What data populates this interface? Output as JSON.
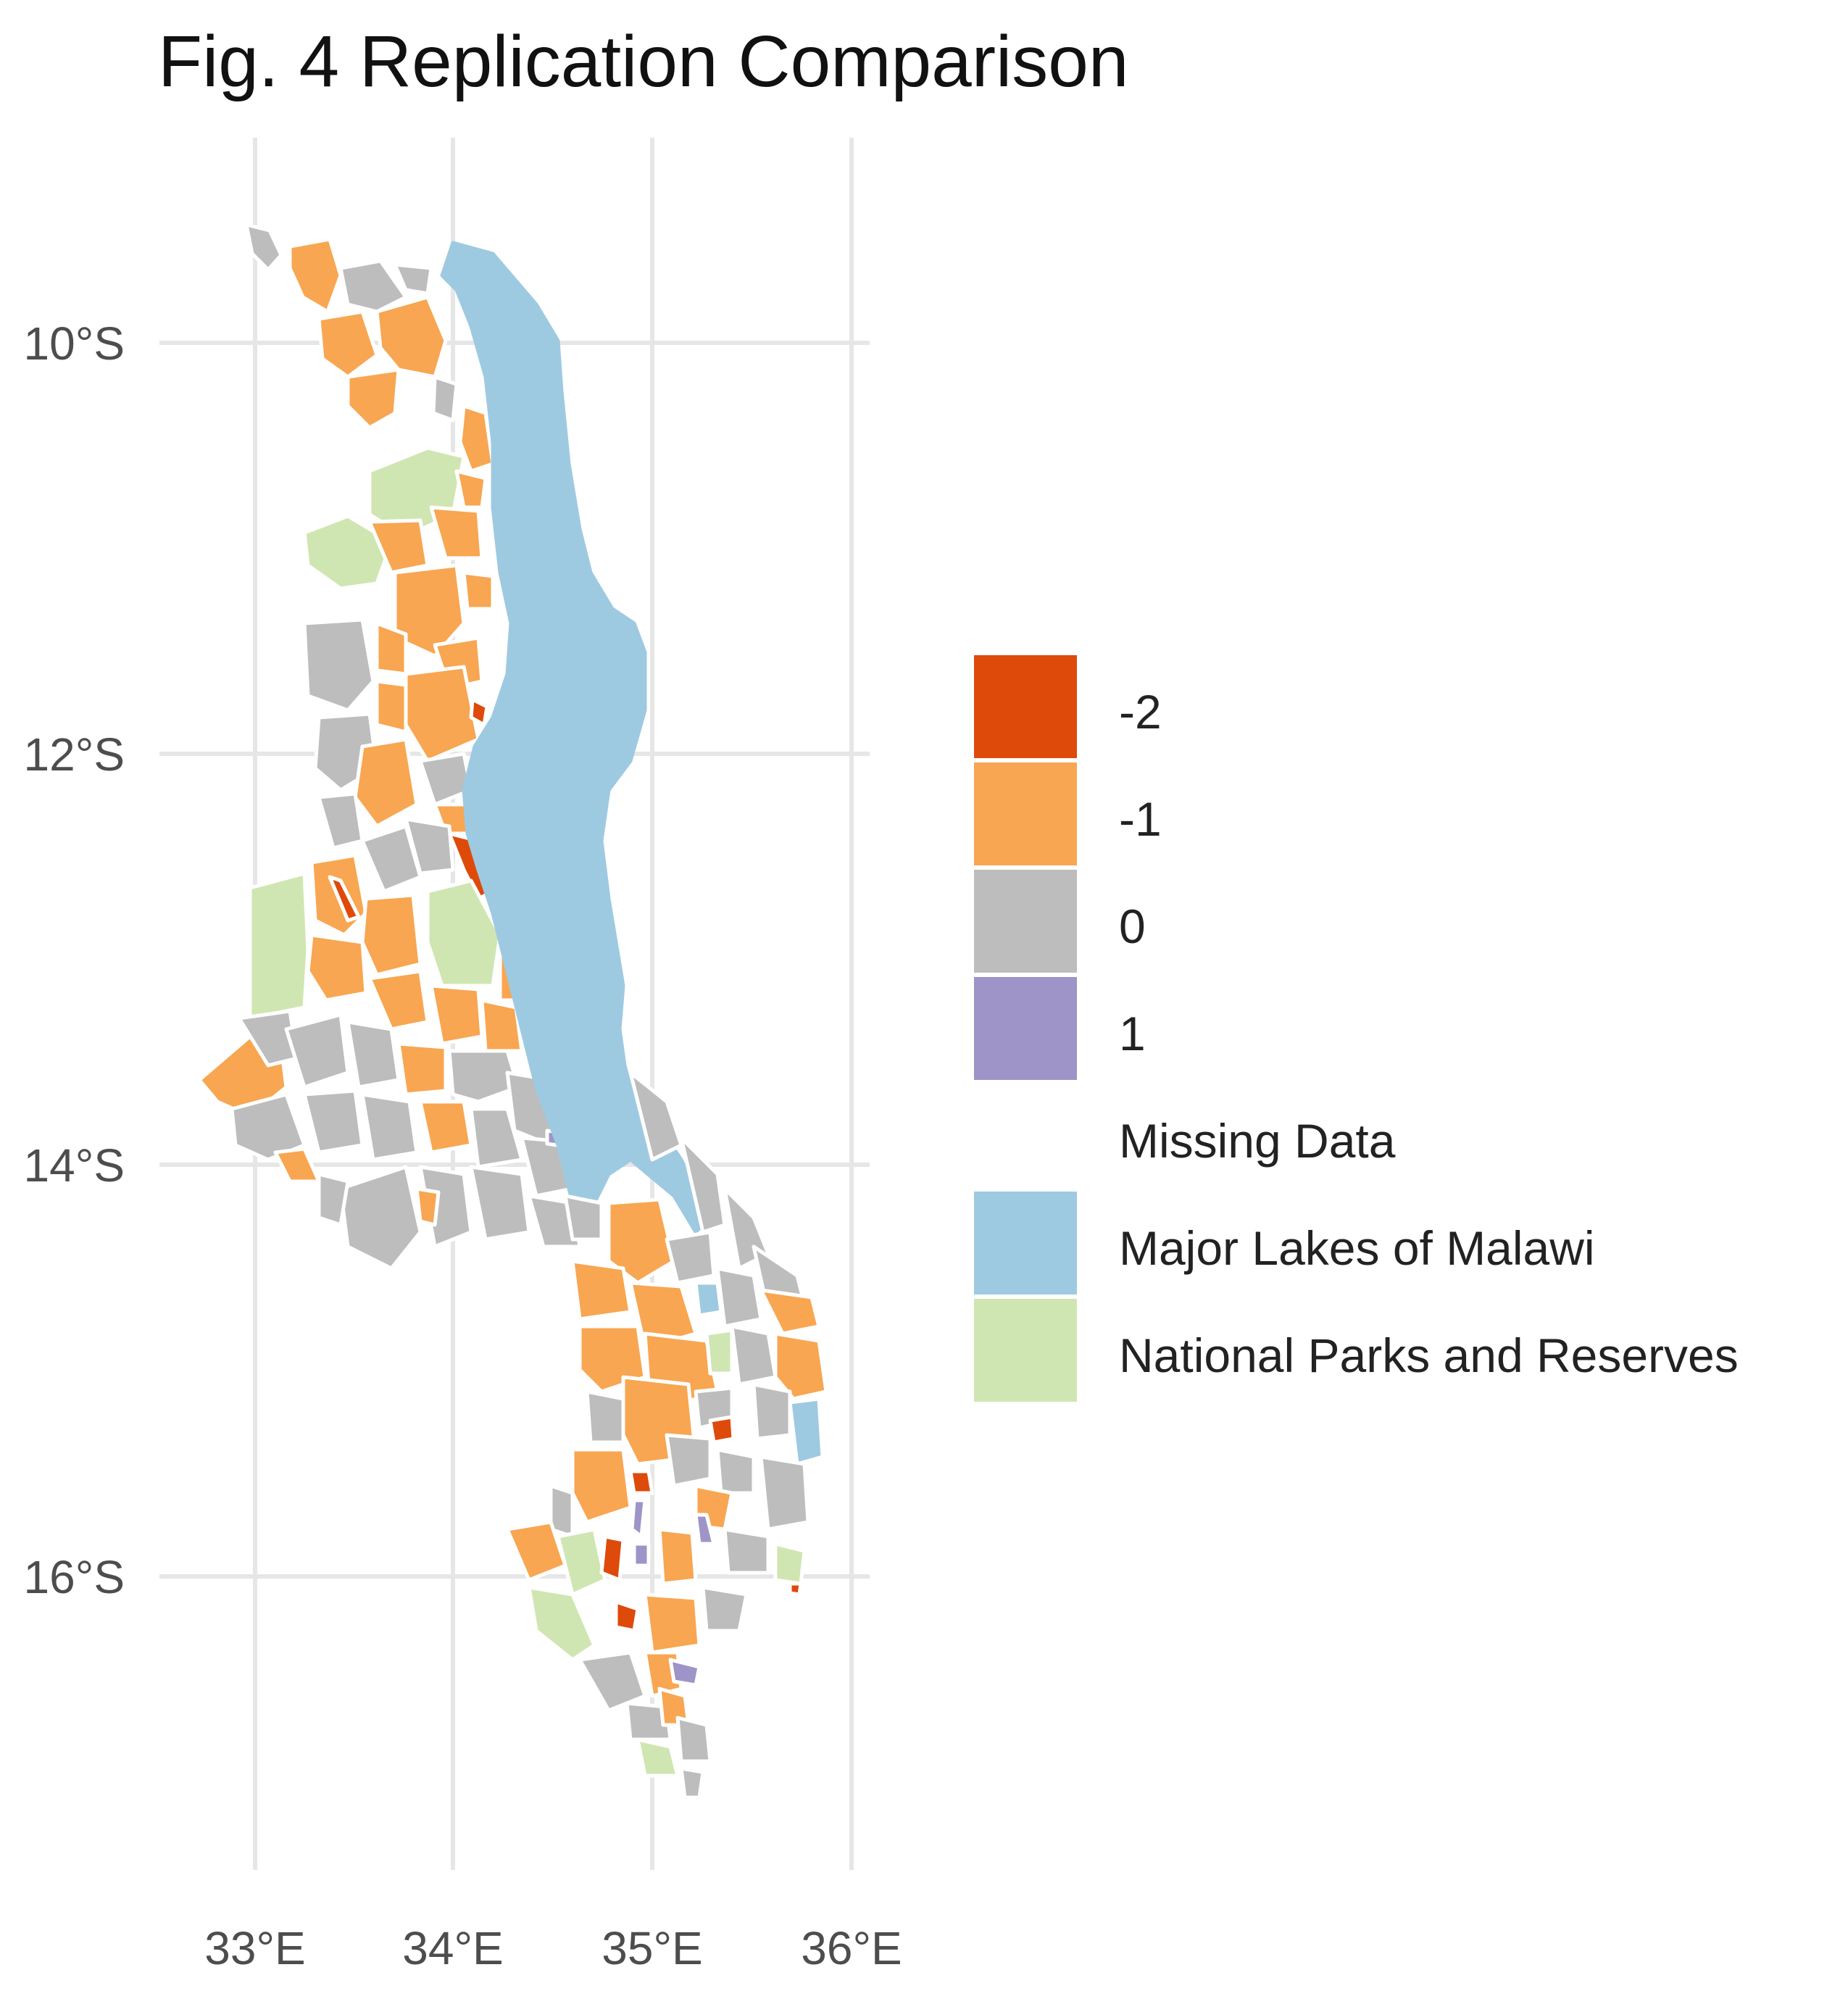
{
  "title": "Fig. 4 Replication Comparison",
  "axes": {
    "x_ticks": [
      "33°E",
      "34°E",
      "35°E",
      "36°E"
    ],
    "y_ticks": [
      "10°S",
      "12°S",
      "14°S",
      "16°S"
    ]
  },
  "legend": {
    "items": [
      {
        "label": "-2",
        "color": "#de4a0a"
      },
      {
        "label": "-1",
        "color": "#f8a651"
      },
      {
        "label": "0",
        "color": "#bdbdbd"
      },
      {
        "label": "1",
        "color": "#9e94c8"
      },
      {
        "label": "Missing Data",
        "color": "#ffffff"
      },
      {
        "label": "Major Lakes of Malawi",
        "color": "#9ecae1"
      },
      {
        "label": "National Parks and Reserves",
        "color": "#d0e6b2"
      }
    ]
  },
  "colors": {
    "grid": "#e6e6e6",
    "background": "#ffffff",
    "district_border": "#ffffff"
  }
}
